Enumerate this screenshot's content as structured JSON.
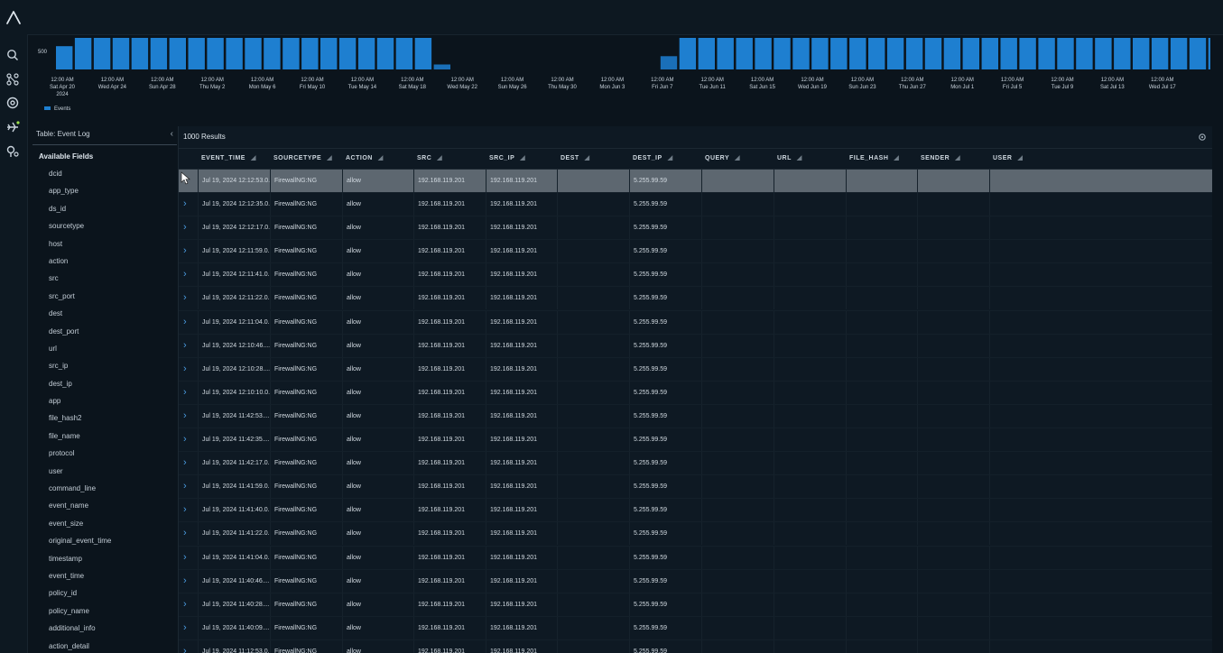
{
  "histogram": {
    "y_label": "500",
    "legend": "Events",
    "colors": {
      "bar": "#1e7fd0",
      "bar_low": "#1a6fb8"
    },
    "ticks": [
      {
        "line1": "12:00 AM",
        "line2": "Sat Apr 20",
        "line3": "2024"
      },
      {
        "line1": "12:00 AM",
        "line2": "Wed Apr 24"
      },
      {
        "line1": "12:00 AM",
        "line2": "Sun Apr 28"
      },
      {
        "line1": "12:00 AM",
        "line2": "Thu May 2"
      },
      {
        "line1": "12:00 AM",
        "line2": "Mon May 6"
      },
      {
        "line1": "12:00 AM",
        "line2": "Fri May 10"
      },
      {
        "line1": "12:00 AM",
        "line2": "Tue May 14"
      },
      {
        "line1": "12:00 AM",
        "line2": "Sat May 18"
      },
      {
        "line1": "12:00 AM",
        "line2": "Wed May 22"
      },
      {
        "line1": "12:00 AM",
        "line2": "Sun May 26"
      },
      {
        "line1": "12:00 AM",
        "line2": "Thu May 30"
      },
      {
        "line1": "12:00 AM",
        "line2": "Mon Jun 3"
      },
      {
        "line1": "12:00 AM",
        "line2": "Fri Jun 7"
      },
      {
        "line1": "12:00 AM",
        "line2": "Tue Jun 11"
      },
      {
        "line1": "12:00 AM",
        "line2": "Sat Jun 15"
      },
      {
        "line1": "12:00 AM",
        "line2": "Wed Jun 19"
      },
      {
        "line1": "12:00 AM",
        "line2": "Sun Jun 23"
      },
      {
        "line1": "12:00 AM",
        "line2": "Thu Jun 27"
      },
      {
        "line1": "12:00 AM",
        "line2": "Mon Jul 1"
      },
      {
        "line1": "12:00 AM",
        "line2": "Fri Jul 5"
      },
      {
        "line1": "12:00 AM",
        "line2": "Tue Jul 9"
      },
      {
        "line1": "12:00 AM",
        "line2": "Sat Jul 13"
      },
      {
        "line1": "12:00 AM",
        "line2": "Wed Jul 17"
      }
    ],
    "bar_fractions": [
      0.56,
      0.76,
      0.76,
      0.76,
      0.76,
      0.76,
      0.76,
      0.76,
      0.76,
      0.76,
      0.76,
      0.76,
      0.76,
      0.76,
      0.76,
      0.76,
      0.76,
      0.76,
      0.76,
      0.76,
      0.12,
      0,
      0,
      0,
      0,
      0,
      0,
      0,
      0,
      0,
      0,
      0,
      0.32,
      0.76,
      0.76,
      0.76,
      0.76,
      0.76,
      0.76,
      0.76,
      0.76,
      0.76,
      0.76,
      0.76,
      0.76,
      0.76,
      0.76,
      0.76,
      0.76,
      0.76,
      0.76,
      0.76,
      0.76,
      0.76,
      0.76,
      0.76,
      0.76,
      0.76,
      0.76,
      0.76,
      0.76,
      0.76,
      0.76,
      0.4
    ]
  },
  "field_panel": {
    "table_label": "Table: Event Log",
    "collapse_glyph": "‹",
    "title": "Available Fields",
    "fields": [
      "dcid",
      "app_type",
      "ds_id",
      "sourcetype",
      "host",
      "action",
      "src",
      "src_port",
      "dest",
      "dest_port",
      "url",
      "src_ip",
      "dest_ip",
      "app",
      "file_hash2",
      "file_name",
      "protocol",
      "user",
      "command_line",
      "event_name",
      "event_size",
      "original_event_time",
      "timestamp",
      "event_time",
      "policy_id",
      "policy_name",
      "additional_info",
      "action_detail"
    ]
  },
  "results": {
    "count_label": "1000 Results",
    "sort_glyph": "◢",
    "expand_glyph": "›",
    "columns": [
      "EVENT_TIME",
      "SOURCETYPE",
      "ACTION",
      "SRC",
      "SRC_IP",
      "DEST",
      "DEST_IP",
      "QUERY",
      "URL",
      "FILE_HASH",
      "SENDER",
      "USER"
    ],
    "rows": [
      [
        "Jul 19, 2024 12:12:53.0...",
        "FirewallNG:NG",
        "allow",
        "192.168.119.201",
        "192.168.119.201",
        "",
        "5.255.99.59",
        "",
        "",
        "",
        "",
        ""
      ],
      [
        "Jul 19, 2024 12:12:35.0...",
        "FirewallNG:NG",
        "allow",
        "192.168.119.201",
        "192.168.119.201",
        "",
        "5.255.99.59",
        "",
        "",
        "",
        "",
        ""
      ],
      [
        "Jul 19, 2024 12:12:17.0...",
        "FirewallNG:NG",
        "allow",
        "192.168.119.201",
        "192.168.119.201",
        "",
        "5.255.99.59",
        "",
        "",
        "",
        "",
        ""
      ],
      [
        "Jul 19, 2024 12:11:59.0...",
        "FirewallNG:NG",
        "allow",
        "192.168.119.201",
        "192.168.119.201",
        "",
        "5.255.99.59",
        "",
        "",
        "",
        "",
        ""
      ],
      [
        "Jul 19, 2024 12:11:41.0...",
        "FirewallNG:NG",
        "allow",
        "192.168.119.201",
        "192.168.119.201",
        "",
        "5.255.99.59",
        "",
        "",
        "",
        "",
        ""
      ],
      [
        "Jul 19, 2024 12:11:22.0...",
        "FirewallNG:NG",
        "allow",
        "192.168.119.201",
        "192.168.119.201",
        "",
        "5.255.99.59",
        "",
        "",
        "",
        "",
        ""
      ],
      [
        "Jul 19, 2024 12:11:04.0...",
        "FirewallNG:NG",
        "allow",
        "192.168.119.201",
        "192.168.119.201",
        "",
        "5.255.99.59",
        "",
        "",
        "",
        "",
        ""
      ],
      [
        "Jul 19, 2024 12:10:46....",
        "FirewallNG:NG",
        "allow",
        "192.168.119.201",
        "192.168.119.201",
        "",
        "5.255.99.59",
        "",
        "",
        "",
        "",
        ""
      ],
      [
        "Jul 19, 2024 12:10:28....",
        "FirewallNG:NG",
        "allow",
        "192.168.119.201",
        "192.168.119.201",
        "",
        "5.255.99.59",
        "",
        "",
        "",
        "",
        ""
      ],
      [
        "Jul 19, 2024 12:10:10.0...",
        "FirewallNG:NG",
        "allow",
        "192.168.119.201",
        "192.168.119.201",
        "",
        "5.255.99.59",
        "",
        "",
        "",
        "",
        ""
      ],
      [
        "Jul 19, 2024 11:42:53....",
        "FirewallNG:NG",
        "allow",
        "192.168.119.201",
        "192.168.119.201",
        "",
        "5.255.99.59",
        "",
        "",
        "",
        "",
        ""
      ],
      [
        "Jul 19, 2024 11:42:35....",
        "FirewallNG:NG",
        "allow",
        "192.168.119.201",
        "192.168.119.201",
        "",
        "5.255.99.59",
        "",
        "",
        "",
        "",
        ""
      ],
      [
        "Jul 19, 2024 11:42:17.0...",
        "FirewallNG:NG",
        "allow",
        "192.168.119.201",
        "192.168.119.201",
        "",
        "5.255.99.59",
        "",
        "",
        "",
        "",
        ""
      ],
      [
        "Jul 19, 2024 11:41:59.0...",
        "FirewallNG:NG",
        "allow",
        "192.168.119.201",
        "192.168.119.201",
        "",
        "5.255.99.59",
        "",
        "",
        "",
        "",
        ""
      ],
      [
        "Jul 19, 2024 11:41:40.0...",
        "FirewallNG:NG",
        "allow",
        "192.168.119.201",
        "192.168.119.201",
        "",
        "5.255.99.59",
        "",
        "",
        "",
        "",
        ""
      ],
      [
        "Jul 19, 2024 11:41:22.0...",
        "FirewallNG:NG",
        "allow",
        "192.168.119.201",
        "192.168.119.201",
        "",
        "5.255.99.59",
        "",
        "",
        "",
        "",
        ""
      ],
      [
        "Jul 19, 2024 11:41:04.0...",
        "FirewallNG:NG",
        "allow",
        "192.168.119.201",
        "192.168.119.201",
        "",
        "5.255.99.59",
        "",
        "",
        "",
        "",
        ""
      ],
      [
        "Jul 19, 2024 11:40:46....",
        "FirewallNG:NG",
        "allow",
        "192.168.119.201",
        "192.168.119.201",
        "",
        "5.255.99.59",
        "",
        "",
        "",
        "",
        ""
      ],
      [
        "Jul 19, 2024 11:40:28....",
        "FirewallNG:NG",
        "allow",
        "192.168.119.201",
        "192.168.119.201",
        "",
        "5.255.99.59",
        "",
        "",
        "",
        "",
        ""
      ],
      [
        "Jul 19, 2024 11:40:09....",
        "FirewallNG:NG",
        "allow",
        "192.168.119.201",
        "192.168.119.201",
        "",
        "5.255.99.59",
        "",
        "",
        "",
        "",
        ""
      ],
      [
        "Jul 19, 2024 11:12:53.0...",
        "FirewallNG:NG",
        "allow",
        "192.168.119.201",
        "192.168.119.201",
        "",
        "5.255.99.59",
        "",
        "",
        "",
        "",
        ""
      ]
    ]
  },
  "icons": {
    "logo": "logo-icon",
    "rail": [
      "search-icon",
      "graph-icon",
      "target-icon",
      "flight-icon",
      "location-settings-icon"
    ],
    "settings": "gear-icon"
  }
}
